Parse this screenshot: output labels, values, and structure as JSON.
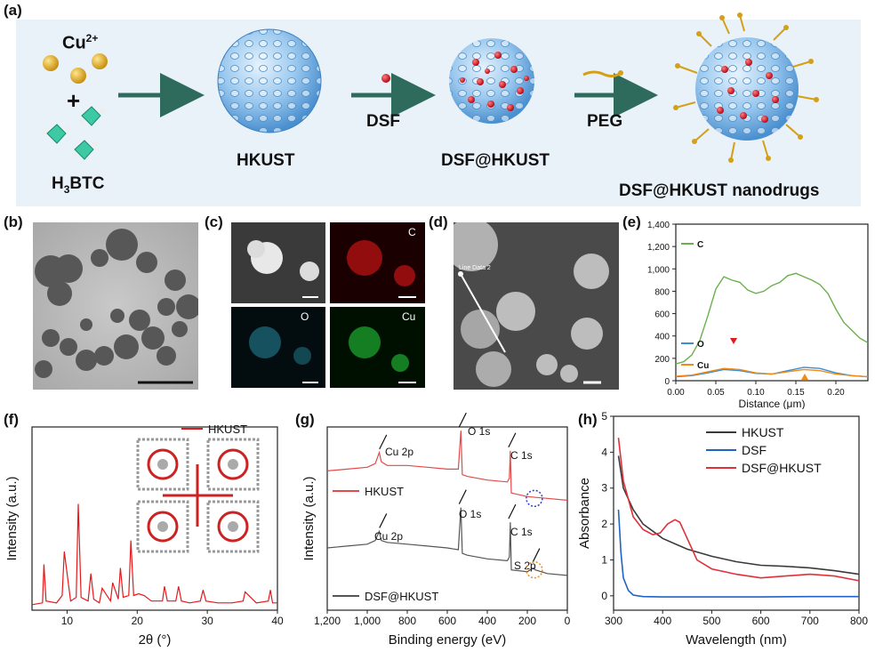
{
  "panel_labels": {
    "a": "(a)",
    "b": "(b)",
    "c": "(c)",
    "d": "(d)",
    "e": "(e)",
    "f": "(f)",
    "g": "(g)",
    "h": "(h)"
  },
  "schematic": {
    "cu_ion": "Cu",
    "cu_charge": "2+",
    "plus": "+",
    "linker_h": "H",
    "linker_sub": "3",
    "linker_rest": "BTC",
    "hkust": "HKUST",
    "dsf": "DSF",
    "dsf_hkust": "DSF@HKUST",
    "peg": "PEG",
    "nanodrugs": "DSF@HKUST nanodrugs",
    "colors": {
      "sphere": "#8fc0ea",
      "drug": "#d8142a",
      "peg": "#d4a017",
      "arrow": "#2f6b5d",
      "background": "#e9f1f9"
    }
  },
  "eds": {
    "c": "C",
    "o": "O",
    "cu": "Cu"
  },
  "sem": {
    "line_label": "Line Data 2"
  },
  "chart_data": [
    {
      "id": "e",
      "type": "line",
      "title": "",
      "xlabel": "Distance (μm)",
      "ylabel": "",
      "xlim": [
        0,
        0.24
      ],
      "ylim": [
        0,
        1400
      ],
      "xticks": [
        "0.00",
        "0.05",
        "0.10",
        "0.15",
        "0.20"
      ],
      "yticks": [
        "0",
        "200",
        "400",
        "600",
        "800",
        "1,000",
        "1,200",
        "1,400"
      ],
      "series": [
        {
          "name": "C",
          "color": "#6ab04c",
          "x": [
            0,
            0.01,
            0.02,
            0.03,
            0.04,
            0.05,
            0.06,
            0.07,
            0.08,
            0.09,
            0.1,
            0.11,
            0.12,
            0.13,
            0.14,
            0.15,
            0.16,
            0.17,
            0.18,
            0.19,
            0.2,
            0.21,
            0.22,
            0.23,
            0.24
          ],
          "y": [
            150,
            170,
            230,
            360,
            580,
            820,
            930,
            900,
            880,
            810,
            780,
            800,
            850,
            880,
            940,
            960,
            930,
            900,
            860,
            780,
            640,
            520,
            450,
            380,
            340
          ]
        },
        {
          "name": "O",
          "color": "#3a8fd0",
          "x": [
            0,
            0.02,
            0.04,
            0.06,
            0.08,
            0.1,
            0.12,
            0.14,
            0.16,
            0.18,
            0.2,
            0.22,
            0.24
          ],
          "y": [
            35,
            45,
            70,
            100,
            90,
            65,
            60,
            90,
            120,
            110,
            70,
            45,
            35
          ]
        },
        {
          "name": "Cu",
          "color": "#f08a1c",
          "x": [
            0,
            0.02,
            0.04,
            0.06,
            0.08,
            0.1,
            0.12,
            0.14,
            0.16,
            0.18,
            0.2,
            0.22,
            0.24
          ],
          "y": [
            40,
            50,
            80,
            110,
            100,
            70,
            60,
            80,
            100,
            90,
            60,
            45,
            35
          ]
        }
      ],
      "legend": "left"
    },
    {
      "id": "f",
      "type": "line",
      "title": "",
      "xlabel": "2θ (°)",
      "ylabel": "Intensity (a.u.)",
      "xlim": [
        5,
        40
      ],
      "ylim": [
        0,
        100
      ],
      "xticks": [
        "10",
        "20",
        "30",
        "40"
      ],
      "series": [
        {
          "name": "HKUST",
          "color": "#e31a1c",
          "x": [
            5.0,
            6.5,
            6.7,
            7.0,
            8.5,
            9.3,
            9.6,
            10.5,
            11.3,
            11.6,
            12.0,
            13.0,
            13.4,
            13.8,
            14.6,
            15.0,
            16.2,
            16.5,
            17.3,
            17.6,
            18.0,
            18.8,
            19.1,
            19.5,
            20.2,
            21.0,
            22.0,
            23.6,
            23.9,
            24.3,
            25.5,
            25.9,
            26.3,
            27.5,
            29.0,
            29.4,
            29.8,
            31.5,
            33.5,
            35.1,
            35.4,
            37.0,
            38.7,
            39.0,
            39.3,
            40.0
          ],
          "y": [
            3,
            4,
            25,
            5,
            4,
            8,
            32,
            5,
            7,
            58,
            7,
            5,
            20,
            6,
            4,
            12,
            5,
            15,
            6,
            23,
            7,
            8,
            38,
            8,
            9,
            8,
            5,
            5,
            13,
            5,
            5,
            13,
            5,
            4,
            5,
            11,
            5,
            4,
            4,
            5,
            10,
            4,
            5,
            11,
            4,
            4
          ]
        }
      ],
      "legend": "top-right"
    },
    {
      "id": "g",
      "type": "line",
      "title": "",
      "xlabel": "Binding energy (eV)",
      "ylabel": "Intensity (a.u.)",
      "xlim": [
        1200,
        0
      ],
      "ylim": [
        0,
        100
      ],
      "xticks": [
        "1,200",
        "1,000",
        "800",
        "600",
        "400",
        "200",
        "0"
      ],
      "series": [
        {
          "name": "HKUST",
          "color": "#e34a4a",
          "x": [
            1200,
            1100,
            1000,
            960,
            940,
            930,
            900,
            800,
            700,
            600,
            545,
            532,
            525,
            500,
            400,
            300,
            290,
            285,
            280,
            200,
            100,
            0
          ],
          "y": [
            76,
            77,
            78,
            80,
            86,
            81,
            79,
            79,
            78,
            77,
            77,
            98,
            74,
            73,
            71,
            70,
            72,
            87,
            64,
            62,
            61,
            60
          ]
        },
        {
          "name": "DSF@HKUST",
          "color": "#555555",
          "x": [
            1200,
            1100,
            1000,
            960,
            940,
            930,
            900,
            800,
            700,
            600,
            545,
            532,
            525,
            500,
            400,
            300,
            290,
            285,
            280,
            200,
            170,
            160,
            100,
            0
          ],
          "y": [
            34,
            35,
            36,
            38,
            43,
            38,
            37,
            36,
            35,
            34,
            33,
            56,
            31,
            30,
            28,
            27,
            29,
            48,
            22,
            21,
            23,
            22,
            20,
            19
          ]
        }
      ],
      "annotations": [
        "Cu 2p",
        "O 1s",
        "C 1s",
        "S 2p"
      ],
      "legend": "inside"
    },
    {
      "id": "h",
      "type": "line",
      "title": "",
      "xlabel": "Wavelength (nm)",
      "ylabel": "Absorbance",
      "xlim": [
        300,
        800
      ],
      "ylim": [
        -0.4,
        5
      ],
      "xticks": [
        "300",
        "400",
        "500",
        "600",
        "700",
        "800"
      ],
      "yticks": [
        "0",
        "1",
        "2",
        "3",
        "4",
        "5"
      ],
      "series": [
        {
          "name": "HKUST",
          "color": "#3a3a3a",
          "x": [
            310,
            320,
            340,
            360,
            380,
            400,
            450,
            500,
            550,
            600,
            650,
            700,
            750,
            800
          ],
          "y": [
            3.9,
            3.0,
            2.4,
            2.0,
            1.8,
            1.6,
            1.3,
            1.1,
            0.95,
            0.85,
            0.82,
            0.78,
            0.7,
            0.6
          ]
        },
        {
          "name": "DSF",
          "color": "#1f63c6",
          "x": [
            310,
            315,
            320,
            330,
            340,
            360,
            400,
            500,
            600,
            700,
            800
          ],
          "y": [
            2.4,
            1.2,
            0.5,
            0.15,
            0.02,
            -0.02,
            -0.03,
            -0.03,
            -0.03,
            -0.02,
            -0.02
          ]
        },
        {
          "name": "DSF@HKUST",
          "color": "#e0303a",
          "x": [
            310,
            320,
            340,
            360,
            380,
            395,
            410,
            425,
            435,
            450,
            470,
            500,
            550,
            600,
            650,
            700,
            750,
            800
          ],
          "y": [
            4.4,
            3.2,
            2.2,
            1.85,
            1.7,
            1.75,
            2.0,
            2.12,
            2.05,
            1.6,
            1.0,
            0.75,
            0.6,
            0.5,
            0.55,
            0.6,
            0.55,
            0.42
          ]
        }
      ],
      "legend": "top-right"
    }
  ]
}
